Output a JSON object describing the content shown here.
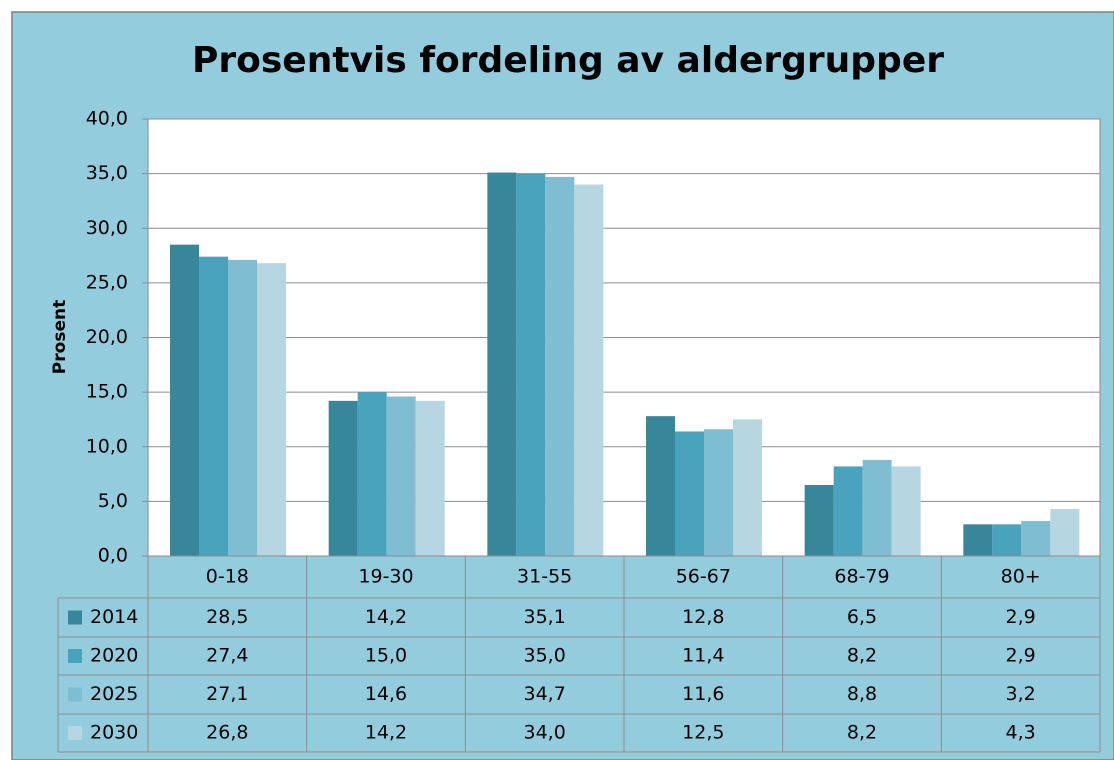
{
  "chart_data": {
    "type": "bar",
    "title": "Prosentvis fordeling av aldergrupper",
    "y_label": "Prosent",
    "categories": [
      "0-18",
      "19-30",
      "31-55",
      "56-67",
      "68-79",
      "80+"
    ],
    "series": [
      {
        "name": "2014",
        "color": "#38869a",
        "values": [
          28.5,
          14.2,
          35.1,
          12.8,
          6.5,
          2.9
        ],
        "value_labels": [
          "28,5",
          "14,2",
          "35,1",
          "12,8",
          "6,5",
          "2,9"
        ]
      },
      {
        "name": "2020",
        "color": "#4aa3bd",
        "values": [
          27.4,
          15.0,
          35.0,
          11.4,
          8.2,
          2.9
        ],
        "value_labels": [
          "27,4",
          "15,0",
          "35,0",
          "11,4",
          "8,2",
          "2,9"
        ]
      },
      {
        "name": "2025",
        "color": "#7fbdd3",
        "values": [
          27.1,
          14.6,
          34.7,
          11.6,
          8.8,
          3.2
        ],
        "value_labels": [
          "27,1",
          "14,6",
          "34,7",
          "11,6",
          "8,8",
          "3,2"
        ]
      },
      {
        "name": "2030",
        "color": "#b6d6e2",
        "values": [
          26.8,
          14.2,
          34.0,
          12.5,
          8.2,
          4.3
        ],
        "value_labels": [
          "26,8",
          "14,2",
          "34,0",
          "12,5",
          "8,2",
          "4,3"
        ]
      }
    ],
    "ylim": [
      0,
      40
    ],
    "yticks": [
      {
        "value": 0,
        "label": "0,0"
      },
      {
        "value": 5,
        "label": "5,0"
      },
      {
        "value": 10,
        "label": "10,0"
      },
      {
        "value": 15,
        "label": "15,0"
      },
      {
        "value": 20,
        "label": "20,0"
      },
      {
        "value": 25,
        "label": "25,0"
      },
      {
        "value": 30,
        "label": "30,0"
      },
      {
        "value": 35,
        "label": "35,0"
      },
      {
        "value": 40,
        "label": "40,0"
      }
    ],
    "grid": true
  }
}
